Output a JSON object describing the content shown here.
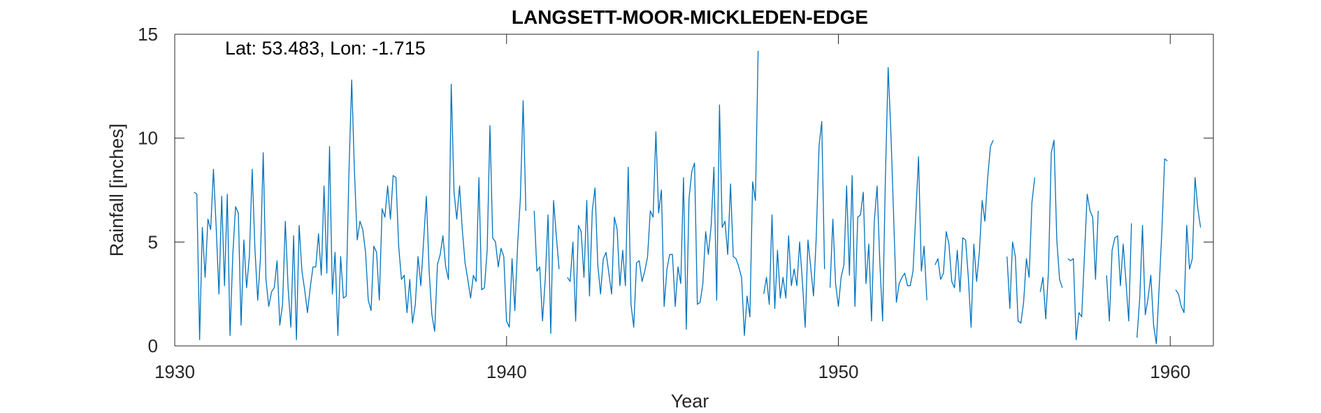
{
  "chart_data": {
    "type": "line",
    "title": "LANGSETT-MOOR-MICKLEDEN-EDGE",
    "xlabel": "Year",
    "ylabel": "Rainfall [inches]",
    "annotation": "Lat: 53.483, Lon: -1.715",
    "xlim": [
      1930,
      1961.3
    ],
    "ylim": [
      0,
      15
    ],
    "xticks": [
      1930,
      1940,
      1950,
      1960
    ],
    "yticks": [
      0,
      5,
      10,
      15
    ],
    "grid": false,
    "line_color": "#0072BD",
    "series": [
      {
        "x_start": 1930.583,
        "x_step": 0.08333,
        "values": [
          7.4,
          7.3,
          0.3,
          5.7,
          3.3,
          6.1,
          5.6,
          8.5,
          5.7,
          2.5,
          7.2,
          2.9,
          7.3,
          0.5,
          4.4,
          6.7,
          6.4,
          1.0,
          5.1,
          2.8,
          4.3,
          8.5,
          4.7,
          2.2,
          4.2,
          9.3,
          3.2,
          1.9,
          2.6,
          2.8,
          4.1,
          1.0,
          2.0,
          6.0,
          2.8,
          0.9,
          5.3,
          0.3,
          5.8,
          3.6,
          2.7,
          1.6,
          2.8,
          3.8,
          3.8,
          5.4,
          3.4,
          7.7,
          3.5,
          9.6,
          2.5,
          4.5,
          0.5,
          4.3,
          2.3,
          2.4,
          8.3,
          12.8,
          8.4,
          5.1,
          6.0,
          5.6,
          4.5,
          2.2,
          1.7,
          4.8,
          4.5,
          2.2,
          6.6,
          6.2,
          7.7,
          6.1,
          8.2,
          8.1,
          4.8,
          3.2,
          3.4,
          1.6,
          3.2,
          1.1,
          2.0,
          4.3,
          2.9,
          5.0,
          7.2,
          3.6,
          1.5,
          0.7,
          3.9,
          4.4,
          5.3,
          3.8,
          3.2,
          12.6,
          7.4,
          6.1,
          7.7,
          5.6,
          4.0,
          3.2,
          2.3,
          3.4,
          3.1,
          8.1,
          2.7,
          2.8,
          4.6,
          10.6,
          5.2,
          5.0,
          3.8,
          4.7,
          4.3,
          1.2,
          0.9,
          4.2,
          1.7,
          4.9,
          7.1,
          11.8,
          6.5,
          null,
          null,
          6.5,
          3.6,
          3.8,
          1.2,
          3.2,
          6.3,
          0.6,
          7.0,
          5.3,
          3.7,
          null,
          null,
          3.3,
          3.1,
          5.0,
          1.2,
          5.8,
          5.5,
          3.3,
          7.0,
          2.4,
          6.5,
          7.6,
          3.9,
          2.5,
          4.2,
          4.5,
          3.5,
          2.5,
          6.2,
          5.6,
          2.9,
          4.6,
          2.9,
          8.6,
          2.0,
          0.9,
          4.0,
          4.1,
          3.1,
          3.6,
          4.3,
          6.5,
          6.2,
          10.3,
          6.4,
          7.5,
          1.9,
          3.7,
          4.4,
          4.4,
          1.9,
          3.8,
          3.0,
          8.1,
          0.8,
          7.1,
          8.4,
          8.8,
          2.0,
          2.1,
          3.0,
          5.5,
          4.4,
          5.8,
          8.6,
          2.2,
          11.6,
          5.7,
          6.0,
          4.4,
          7.8,
          4.3,
          4.2,
          3.8,
          3.3,
          0.5,
          2.4,
          1.4,
          7.9,
          7.0,
          14.2,
          null,
          2.5,
          3.3,
          2.0,
          6.3,
          1.8,
          4.6,
          2.3,
          3.3,
          2.3,
          5.3,
          2.9,
          3.7,
          2.9,
          5.0,
          3.1,
          0.9,
          5.1,
          3.8,
          2.4,
          5.2,
          9.6,
          10.8,
          3.7,
          null,
          2.8,
          6.1,
          3.0,
          1.9,
          3.3,
          3.9,
          7.7,
          3.4,
          8.2,
          1.9,
          6.2,
          6.3,
          7.4,
          3.0,
          4.9,
          1.2,
          6.0,
          7.7,
          4.0,
          1.2,
          8.0,
          13.4,
          10.3,
          6.2,
          2.1,
          3.0,
          3.3,
          3.5,
          2.9,
          2.9,
          3.6,
          6.3,
          9.1,
          3.6,
          4.8,
          2.2,
          null,
          null,
          3.9,
          4.2,
          3.2,
          3.5,
          5.5,
          4.9,
          3.1,
          2.8,
          4.6,
          2.6,
          5.2,
          5.1,
          3.3,
          0.9,
          4.9,
          3.1,
          4.5,
          7.0,
          6.0,
          8.1,
          9.6,
          9.9,
          null,
          null,
          null,
          null,
          4.3,
          1.8,
          5.0,
          4.3,
          1.2,
          1.1,
          2.1,
          4.2,
          3.3,
          6.9,
          8.1,
          null,
          2.6,
          3.3,
          1.3,
          3.6,
          9.3,
          9.9,
          5.1,
          3.2,
          2.8,
          null,
          4.2,
          4.1,
          4.2,
          0.3,
          1.6,
          1.4,
          4.4,
          7.3,
          6.5,
          6.2,
          3.2,
          6.5,
          null,
          null,
          3.4,
          1.2,
          4.6,
          5.2,
          5.3,
          2.9,
          4.9,
          3.1,
          1.2,
          5.9,
          null,
          0.4,
          2.3,
          5.8,
          1.5,
          2.3,
          3.4,
          1.0,
          0.1,
          2.8,
          5.5,
          9.0,
          8.9,
          null,
          null,
          2.7,
          2.5,
          1.9,
          1.6,
          5.8,
          3.7,
          4.2,
          8.1,
          6.6,
          5.7
        ]
      }
    ]
  }
}
